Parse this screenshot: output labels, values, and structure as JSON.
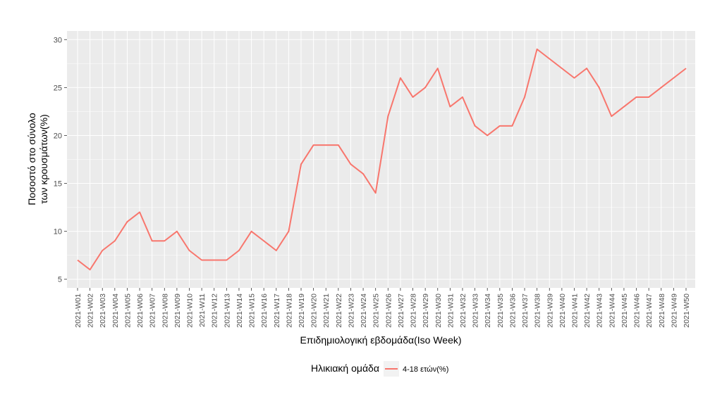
{
  "chart_data": {
    "type": "line",
    "title": "",
    "xlabel": "Επιδημιολογική εβδομάδα(Iso Week)",
    "ylabel_lines": [
      "Ποσοστό στο σύνολο",
      "των κρουσμάτων(%)"
    ],
    "ylim": [
      5,
      30
    ],
    "yticks": [
      5,
      10,
      15,
      20,
      25,
      30
    ],
    "grid": true,
    "legend": {
      "title": "Ηλικιακή ομάδα",
      "placement": "bottom"
    },
    "categories": [
      "2021-W01",
      "2021-W02",
      "2021-W03",
      "2021-W04",
      "2021-W05",
      "2021-W06",
      "2021-W07",
      "2021-W08",
      "2021-W09",
      "2021-W10",
      "2021-W11",
      "2021-W12",
      "2021-W13",
      "2021-W14",
      "2021-W15",
      "2021-W16",
      "2021-W17",
      "2021-W18",
      "2021-W19",
      "2021-W20",
      "2021-W21",
      "2021-W22",
      "2021-W23",
      "2021-W24",
      "2021-W25",
      "2021-W26",
      "2021-W27",
      "2021-W28",
      "2021-W29",
      "2021-W30",
      "2021-W31",
      "2021-W32",
      "2021-W33",
      "2021-W34",
      "2021-W35",
      "2021-W36",
      "2021-W37",
      "2021-W38",
      "2021-W39",
      "2021-W40",
      "2021-W41",
      "2021-W42",
      "2021-W43",
      "2021-W44",
      "2021-W45",
      "2021-W46",
      "2021-W47",
      "2021-W48",
      "2021-W49",
      "2021-W50"
    ],
    "series": [
      {
        "name": "4-18 ετών(%)",
        "color": "#F8766D",
        "values": [
          7,
          6,
          8,
          9,
          11,
          12,
          9,
          9,
          10,
          8,
          7,
          7,
          7,
          8,
          10,
          9,
          8,
          10,
          17,
          19,
          19,
          19,
          17,
          16,
          14,
          22,
          26,
          24,
          25,
          27,
          23,
          24,
          21,
          20,
          21,
          21,
          24,
          29,
          28,
          27,
          26,
          27,
          25,
          22,
          23,
          24,
          24,
          25,
          26,
          27
        ]
      }
    ]
  },
  "colors": {
    "panel_bg": "#EBEBEB",
    "grid": "#FFFFFF",
    "line": "#F8766D"
  }
}
